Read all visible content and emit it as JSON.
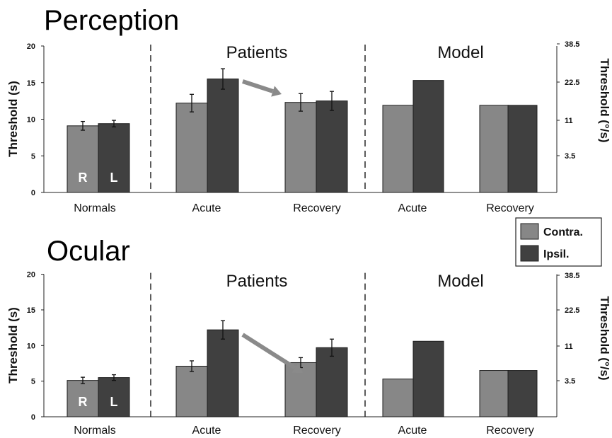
{
  "colors": {
    "contra": "#878787",
    "ipsil": "#404040",
    "arrow": "#8a8a8a"
  },
  "legend": {
    "contra": "Contra.",
    "ipsil": "Ipsil."
  },
  "chart_data": [
    {
      "type": "bar",
      "title": "Perception",
      "ylabel": "Threshold (s)",
      "ylabel_right": "Threshold (°/s)",
      "ylim": [
        0,
        20
      ],
      "yticks": [
        "0",
        "5",
        "10",
        "15",
        "20"
      ],
      "right_ticks": [
        "3.5",
        "11",
        "22.5",
        "38.5"
      ],
      "sections": [
        "Patients",
        "Model"
      ],
      "categories": [
        "Normals",
        "Acute",
        "Recovery",
        "Acute",
        "Recovery"
      ],
      "bar_inner_labels": [
        "R",
        "L"
      ],
      "series": [
        {
          "name": "Contra.",
          "values": [
            9.1,
            12.2,
            12.3,
            11.9,
            11.9
          ],
          "errors": [
            0.6,
            1.2,
            1.2,
            null,
            null
          ]
        },
        {
          "name": "Ipsil.",
          "values": [
            9.4,
            15.5,
            12.5,
            15.3,
            11.9
          ],
          "errors": [
            0.45,
            1.4,
            1.3,
            null,
            null
          ]
        }
      ]
    },
    {
      "type": "bar",
      "title": "Ocular",
      "ylabel": "Threshold (s)",
      "ylabel_right": "Threshold (°/s)",
      "ylim": [
        0,
        20
      ],
      "yticks": [
        "0",
        "5",
        "10",
        "15",
        "20"
      ],
      "right_ticks": [
        "3.5",
        "11",
        "22.5",
        "38.5"
      ],
      "sections": [
        "Patients",
        "Model"
      ],
      "categories": [
        "Normals",
        "Acute",
        "Recovery",
        "Acute",
        "Recovery"
      ],
      "bar_inner_labels": [
        "R",
        "L"
      ],
      "series": [
        {
          "name": "Contra.",
          "values": [
            5.1,
            7.1,
            7.6,
            5.3,
            6.5
          ],
          "errors": [
            0.45,
            0.75,
            0.7,
            null,
            null
          ]
        },
        {
          "name": "Ipsil.",
          "values": [
            5.5,
            12.2,
            9.7,
            10.6,
            6.5
          ],
          "errors": [
            0.4,
            1.3,
            1.2,
            null,
            null
          ]
        }
      ]
    }
  ]
}
